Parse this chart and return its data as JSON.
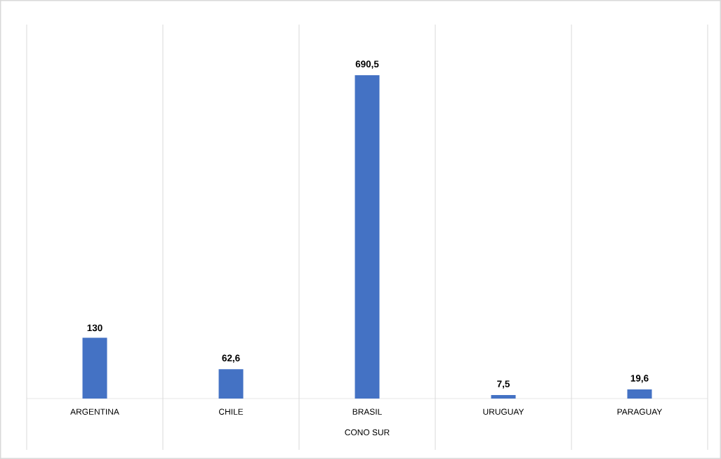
{
  "chart_data": {
    "type": "bar",
    "xlabel": "CONO SUR",
    "categories": [
      "ARGENTINA",
      "CHILE",
      "BRASIL",
      "URUGUAY",
      "PARAGUAY"
    ],
    "values": [
      130,
      62.6,
      690.5,
      7.5,
      19.6
    ],
    "value_labels": [
      "130",
      "62,6",
      "690,5",
      "7,5",
      "19,6"
    ],
    "color": "#4472c4"
  }
}
